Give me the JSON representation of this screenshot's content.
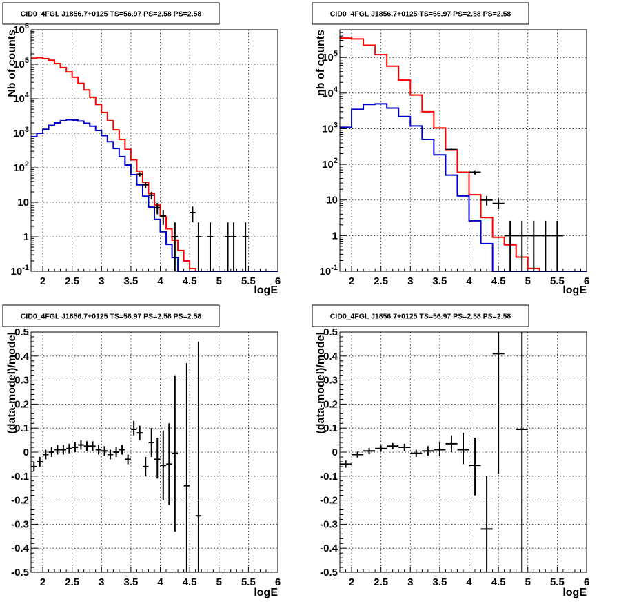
{
  "chart_data": [
    {
      "type": "step-histogram",
      "title": "CID0_4FGL J1856.7+0125 TS=56.97 PS=2.58 PS=2.58",
      "xlabel": "logE",
      "ylabel": "Nb of counts",
      "xlim": [
        1.8,
        6.0
      ],
      "ylim": [
        0.1,
        1000000
      ],
      "yscale": "log",
      "grid": true,
      "xticks": [
        "2",
        "2.5",
        "3",
        "3.5",
        "4",
        "4.5",
        "5",
        "5.5",
        "6"
      ],
      "yticks": [
        "10^-1",
        "1",
        "10",
        "10^2",
        "10^3",
        "10^4",
        "10^5",
        "10^6"
      ],
      "series": [
        {
          "color": "#ff0000",
          "kind": "step",
          "edges": [
            1.8,
            1.9,
            2.0,
            2.1,
            2.2,
            2.3,
            2.4,
            2.5,
            2.6,
            2.7,
            2.8,
            2.9,
            3.0,
            3.1,
            3.2,
            3.3,
            3.4,
            3.5,
            3.6,
            3.7,
            3.8,
            3.9,
            4.0,
            4.1,
            4.2,
            4.3,
            4.4,
            4.5,
            4.6,
            4.7,
            4.8,
            4.9,
            5.0,
            5.1,
            5.2,
            5.3,
            5.4,
            5.5,
            5.6,
            5.7,
            5.8,
            5.9,
            6.0
          ],
          "values": [
            150000,
            155000,
            145000,
            130000,
            105000,
            80000,
            60000,
            42000,
            28000,
            18000,
            11000,
            6800,
            4000,
            2300,
            1250,
            660,
            340,
            170,
            80,
            38,
            18,
            8.2,
            3.8,
            1.7,
            0.8,
            0.4,
            0.2,
            0.12,
            0.1,
            0.1,
            0.1,
            0.1,
            0.1,
            0.1,
            0.1,
            0.1,
            0.1,
            0.1,
            0.1,
            0.1,
            0.1,
            0.1
          ]
        },
        {
          "color": "#0000cc",
          "kind": "step",
          "edges": [
            1.8,
            1.9,
            2.0,
            2.1,
            2.2,
            2.3,
            2.4,
            2.5,
            2.6,
            2.7,
            2.8,
            2.9,
            3.0,
            3.1,
            3.2,
            3.3,
            3.4,
            3.5,
            3.6,
            3.7,
            3.8,
            3.9,
            4.0,
            4.1,
            4.2,
            4.3,
            4.4,
            4.5,
            4.6,
            4.7,
            4.8,
            4.9,
            5.0,
            5.1,
            5.2,
            5.3,
            5.4,
            5.5,
            5.6,
            5.7,
            5.8,
            5.9,
            6.0
          ],
          "values": [
            800,
            1000,
            1300,
            1700,
            2000,
            2300,
            2450,
            2400,
            2250,
            1950,
            1600,
            1200,
            850,
            570,
            360,
            210,
            120,
            63,
            32,
            15,
            7.2,
            3.2,
            1.4,
            0.6,
            0.25,
            0.1,
            0.1,
            0.1,
            0.1,
            0.1,
            0.1,
            0.1,
            0.1,
            0.1,
            0.1,
            0.1,
            0.1,
            0.1,
            0.1,
            0.1,
            0.1,
            0.1
          ]
        },
        {
          "color": "#000000",
          "kind": "points",
          "points": [
            {
              "x": 3.65,
              "y": 65,
              "xerr": 0.05,
              "ylo": 56,
              "yhi": 74
            },
            {
              "x": 3.75,
              "y": 32,
              "xerr": 0.05,
              "ylo": 26,
              "yhi": 38
            },
            {
              "x": 3.85,
              "y": 16,
              "xerr": 0.05,
              "ylo": 12,
              "yhi": 20
            },
            {
              "x": 3.95,
              "y": 7,
              "xerr": 0.05,
              "ylo": 4.5,
              "yhi": 9.5
            },
            {
              "x": 4.05,
              "y": 4,
              "xerr": 0.05,
              "ylo": 2.2,
              "yhi": 6
            },
            {
              "x": 4.25,
              "y": 1,
              "xerr": 0.05,
              "ylo": 0.1,
              "yhi": 2.6
            },
            {
              "x": 4.55,
              "y": 5,
              "xerr": 0.05,
              "ylo": 2.6,
              "yhi": 7.5
            },
            {
              "x": 4.65,
              "y": 1,
              "xerr": 0.05,
              "ylo": 0.1,
              "yhi": 2.6
            },
            {
              "x": 4.85,
              "y": 1,
              "xerr": 0.05,
              "ylo": 0.1,
              "yhi": 2.6
            },
            {
              "x": 5.15,
              "y": 1,
              "xerr": 0.05,
              "ylo": 0.1,
              "yhi": 2.6
            },
            {
              "x": 5.25,
              "y": 1,
              "xerr": 0.05,
              "ylo": 0.1,
              "yhi": 2.6
            },
            {
              "x": 5.45,
              "y": 1,
              "xerr": 0.05,
              "ylo": 0.1,
              "yhi": 2.6
            }
          ]
        }
      ]
    },
    {
      "type": "step-histogram",
      "title": "CID0_4FGL J1856.7+0125 TS=56.97 PS=2.58 PS=2.58",
      "xlabel": "logE",
      "ylabel": "nb of counts",
      "xlim": [
        1.8,
        6.0
      ],
      "ylim": [
        0.1,
        600000
      ],
      "yscale": "log",
      "grid": true,
      "xticks": [
        "2",
        "2.5",
        "3",
        "3.5",
        "4",
        "4.5",
        "5",
        "5.5",
        "6"
      ],
      "yticks": [
        "10^-1",
        "1",
        "10",
        "10^2",
        "10^3",
        "10^4",
        "10^5"
      ],
      "series": [
        {
          "color": "#ff0000",
          "kind": "step",
          "edges": [
            1.8,
            2.0,
            2.2,
            2.4,
            2.6,
            2.8,
            3.0,
            3.2,
            3.4,
            3.6,
            3.8,
            4.0,
            4.2,
            4.4,
            4.6,
            4.8,
            5.0,
            5.2,
            5.4,
            5.6,
            5.8,
            6.0
          ],
          "values": [
            350000,
            330000,
            220000,
            120000,
            57000,
            23000,
            8800,
            3000,
            1050,
            250,
            60,
            14,
            3.2,
            0.9,
            0.55,
            0.25,
            0.12,
            0.1,
            0.1,
            0.1,
            0.1
          ]
        },
        {
          "color": "#0000cc",
          "kind": "step",
          "edges": [
            1.8,
            2.0,
            2.2,
            2.4,
            2.6,
            2.8,
            3.0,
            3.2,
            3.4,
            3.6,
            3.8,
            4.0,
            4.2,
            4.4,
            4.6,
            4.8,
            5.0,
            5.2,
            5.4,
            5.6,
            5.8,
            6.0
          ],
          "values": [
            1100,
            3500,
            4800,
            5000,
            3800,
            2200,
            1200,
            500,
            185,
            50,
            13,
            2.6,
            0.6,
            0.1,
            0.1,
            0.1,
            0.1,
            0.1,
            0.1,
            0.1,
            0.1
          ]
        },
        {
          "color": "#000000",
          "kind": "points",
          "points": [
            {
              "x": 3.7,
              "y": 260,
              "xerr": 0.1,
              "ylo": 245,
              "yhi": 275
            },
            {
              "x": 4.1,
              "y": 60,
              "xerr": 0.1,
              "ylo": 52,
              "yhi": 68
            },
            {
              "x": 4.3,
              "y": 10,
              "xerr": 0.1,
              "ylo": 7,
              "yhi": 13
            },
            {
              "x": 4.5,
              "y": 8,
              "xerr": 0.1,
              "ylo": 5.5,
              "yhi": 11
            },
            {
              "x": 4.7,
              "y": 1,
              "xerr": 0.1,
              "ylo": 0.1,
              "yhi": 2.6
            },
            {
              "x": 4.9,
              "y": 1,
              "xerr": 0.1,
              "ylo": 0.1,
              "yhi": 2.6
            },
            {
              "x": 5.1,
              "y": 1,
              "xerr": 0.1,
              "ylo": 0.1,
              "yhi": 2.6
            },
            {
              "x": 5.3,
              "y": 1,
              "xerr": 0.1,
              "ylo": 0.1,
              "yhi": 2.6
            },
            {
              "x": 5.5,
              "y": 1,
              "xerr": 0.1,
              "ylo": 0.1,
              "yhi": 2.6
            }
          ]
        }
      ]
    },
    {
      "type": "scatter-errorbars",
      "title": "CID0_4FGL J1856.7+0125 TS=56.97 PS=2.58 PS=2.58",
      "xlabel": "logE",
      "ylabel": "(data-model)/model",
      "xlim": [
        1.8,
        6.0
      ],
      "ylim": [
        -0.5,
        0.5
      ],
      "grid": true,
      "xticks": [
        "2",
        "2.5",
        "3",
        "3.5",
        "4",
        "4.5",
        "5",
        "5.5",
        "6"
      ],
      "yticks": [
        "-0.5",
        "-0.4",
        "-0.3",
        "-0.2",
        "-0.1",
        "0",
        "0.1",
        "0.2",
        "0.3",
        "0.4",
        "0.5"
      ],
      "series": [
        {
          "color": "#000000",
          "kind": "points",
          "points": [
            {
              "x": 1.85,
              "y": -0.06,
              "xerr": 0.05,
              "ylo": -0.08,
              "yhi": -0.04
            },
            {
              "x": 1.95,
              "y": -0.04,
              "xerr": 0.05,
              "ylo": -0.06,
              "yhi": -0.02
            },
            {
              "x": 2.05,
              "y": -0.01,
              "xerr": 0.05,
              "ylo": -0.03,
              "yhi": 0.01
            },
            {
              "x": 2.15,
              "y": 0.0,
              "xerr": 0.05,
              "ylo": -0.02,
              "yhi": 0.02
            },
            {
              "x": 2.25,
              "y": 0.01,
              "xerr": 0.05,
              "ylo": -0.01,
              "yhi": 0.03
            },
            {
              "x": 2.35,
              "y": 0.01,
              "xerr": 0.05,
              "ylo": -0.01,
              "yhi": 0.03
            },
            {
              "x": 2.45,
              "y": 0.015,
              "xerr": 0.05,
              "ylo": -0.005,
              "yhi": 0.035
            },
            {
              "x": 2.55,
              "y": 0.02,
              "xerr": 0.05,
              "ylo": 0.0,
              "yhi": 0.04
            },
            {
              "x": 2.65,
              "y": 0.03,
              "xerr": 0.05,
              "ylo": 0.01,
              "yhi": 0.05
            },
            {
              "x": 2.75,
              "y": 0.025,
              "xerr": 0.05,
              "ylo": 0.005,
              "yhi": 0.045
            },
            {
              "x": 2.85,
              "y": 0.025,
              "xerr": 0.05,
              "ylo": 0.005,
              "yhi": 0.045
            },
            {
              "x": 2.95,
              "y": 0.01,
              "xerr": 0.05,
              "ylo": -0.01,
              "yhi": 0.03
            },
            {
              "x": 3.05,
              "y": 0.005,
              "xerr": 0.05,
              "ylo": -0.015,
              "yhi": 0.025
            },
            {
              "x": 3.15,
              "y": -0.01,
              "xerr": 0.05,
              "ylo": -0.03,
              "yhi": 0.01
            },
            {
              "x": 3.25,
              "y": 0.0,
              "xerr": 0.05,
              "ylo": -0.02,
              "yhi": 0.02
            },
            {
              "x": 3.35,
              "y": 0.01,
              "xerr": 0.05,
              "ylo": -0.01,
              "yhi": 0.03
            },
            {
              "x": 3.45,
              "y": -0.03,
              "xerr": 0.05,
              "ylo": -0.05,
              "yhi": -0.01
            },
            {
              "x": 3.55,
              "y": 0.095,
              "xerr": 0.05,
              "ylo": 0.07,
              "yhi": 0.13
            },
            {
              "x": 3.65,
              "y": 0.08,
              "xerr": 0.05,
              "ylo": 0.05,
              "yhi": 0.11
            },
            {
              "x": 3.75,
              "y": -0.06,
              "xerr": 0.05,
              "ylo": -0.1,
              "yhi": -0.02
            },
            {
              "x": 3.85,
              "y": 0.04,
              "xerr": 0.05,
              "ylo": -0.02,
              "yhi": 0.1
            },
            {
              "x": 3.95,
              "y": -0.03,
              "xerr": 0.05,
              "ylo": -0.11,
              "yhi": 0.06
            },
            {
              "x": 4.05,
              "y": -0.055,
              "xerr": 0.05,
              "ylo": -0.2,
              "yhi": 0.09
            },
            {
              "x": 4.15,
              "y": -0.05,
              "xerr": 0.05,
              "ylo": -0.22,
              "yhi": 0.12
            },
            {
              "x": 4.25,
              "y": -0.005,
              "xerr": 0.05,
              "ylo": -0.33,
              "yhi": 0.32
            },
            {
              "x": 4.45,
              "y": -0.14,
              "xerr": 0.05,
              "ylo": -0.5,
              "yhi": 0.37
            },
            {
              "x": 4.65,
              "y": -0.265,
              "xerr": 0.05,
              "ylo": -0.5,
              "yhi": 0.46
            }
          ]
        }
      ]
    },
    {
      "type": "scatter-errorbars",
      "title": "CID0_4FGL J1856.7+0125 TS=56.97 PS=2.58 PS=2.58",
      "xlabel": "logE",
      "ylabel": "(data-model)/model",
      "xlim": [
        1.8,
        6.0
      ],
      "ylim": [
        -0.5,
        0.5
      ],
      "grid": true,
      "xticks": [
        "2",
        "2.5",
        "3",
        "3.5",
        "4",
        "4.5",
        "5",
        "5.5",
        "6"
      ],
      "yticks": [
        "-0.5",
        "-0.4",
        "-0.3",
        "-0.2",
        "-0.1",
        "0",
        "0.1",
        "0.2",
        "0.3",
        "0.4",
        "0.5"
      ],
      "series": [
        {
          "color": "#000000",
          "kind": "points",
          "points": [
            {
              "x": 1.9,
              "y": -0.05,
              "xerr": 0.1,
              "ylo": -0.065,
              "yhi": -0.035
            },
            {
              "x": 2.1,
              "y": -0.01,
              "xerr": 0.1,
              "ylo": -0.022,
              "yhi": 0.002
            },
            {
              "x": 2.3,
              "y": 0.005,
              "xerr": 0.1,
              "ylo": -0.008,
              "yhi": 0.018
            },
            {
              "x": 2.5,
              "y": 0.015,
              "xerr": 0.1,
              "ylo": 0.002,
              "yhi": 0.028
            },
            {
              "x": 2.7,
              "y": 0.025,
              "xerr": 0.1,
              "ylo": 0.012,
              "yhi": 0.038
            },
            {
              "x": 2.9,
              "y": 0.02,
              "xerr": 0.1,
              "ylo": 0.005,
              "yhi": 0.035
            },
            {
              "x": 3.1,
              "y": -0.005,
              "xerr": 0.1,
              "ylo": -0.02,
              "yhi": 0.01
            },
            {
              "x": 3.3,
              "y": 0.005,
              "xerr": 0.1,
              "ylo": -0.015,
              "yhi": 0.025
            },
            {
              "x": 3.5,
              "y": 0.01,
              "xerr": 0.1,
              "ylo": -0.015,
              "yhi": 0.04
            },
            {
              "x": 3.7,
              "y": 0.035,
              "xerr": 0.1,
              "ylo": 0.0,
              "yhi": 0.07
            },
            {
              "x": 3.9,
              "y": 0.01,
              "xerr": 0.1,
              "ylo": -0.05,
              "yhi": 0.08
            },
            {
              "x": 4.1,
              "y": -0.055,
              "xerr": 0.1,
              "ylo": -0.18,
              "yhi": 0.06
            },
            {
              "x": 4.3,
              "y": -0.32,
              "xerr": 0.1,
              "ylo": -0.5,
              "yhi": -0.1
            },
            {
              "x": 4.5,
              "y": 0.41,
              "xerr": 0.1,
              "ylo": -0.09,
              "yhi": 0.5
            },
            {
              "x": 4.9,
              "y": 0.095,
              "xerr": 0.1,
              "ylo": -0.5,
              "yhi": 0.5
            }
          ]
        }
      ]
    }
  ]
}
